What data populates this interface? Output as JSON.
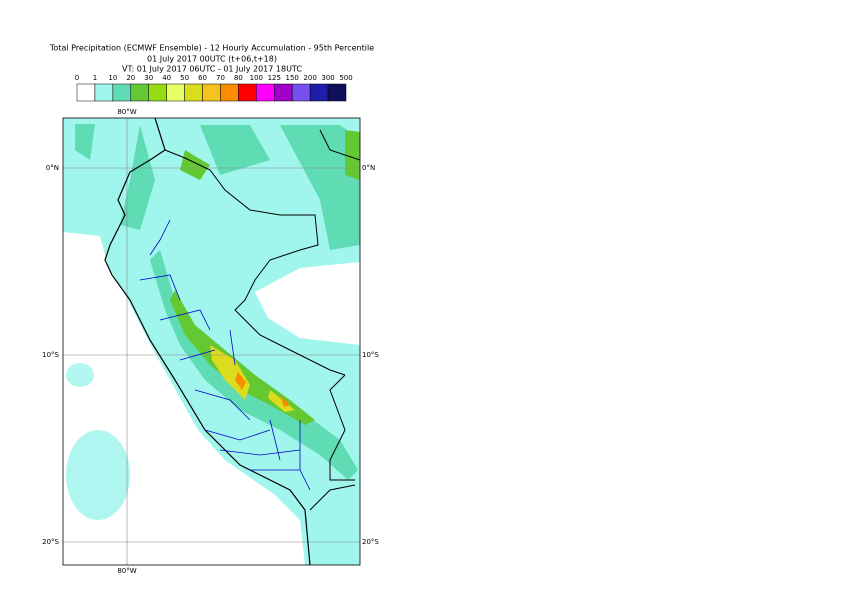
{
  "header": {
    "title": "Total Precipitation (ECMWF Ensemble) - 12 Hourly Accumulation - 95th Percentile",
    "line2": "01 July 2017 00UTC (t+06,t+18)",
    "line3": "VT: 01 July 2017 06UTC - 01 July 2017 18UTC"
  },
  "legend": {
    "labels": [
      0,
      1,
      10,
      20,
      30,
      40,
      50,
      60,
      70,
      80,
      100,
      125,
      150,
      200,
      300,
      500
    ],
    "colors": [
      "#ffffff",
      "#a0f5ec",
      "#5fdcb4",
      "#64c832",
      "#96dc14",
      "#e6ff64",
      "#dcdc1e",
      "#f5c31e",
      "#fa8c00",
      "#ff0000",
      "#ff00ff",
      "#a000c8",
      "#7850f0",
      "#1e1eaa",
      "#0f0f5a"
    ]
  },
  "map": {
    "lon_labels": [
      "80°W"
    ],
    "lat_labels": [
      "0°N",
      "10°S",
      "20°S"
    ]
  }
}
